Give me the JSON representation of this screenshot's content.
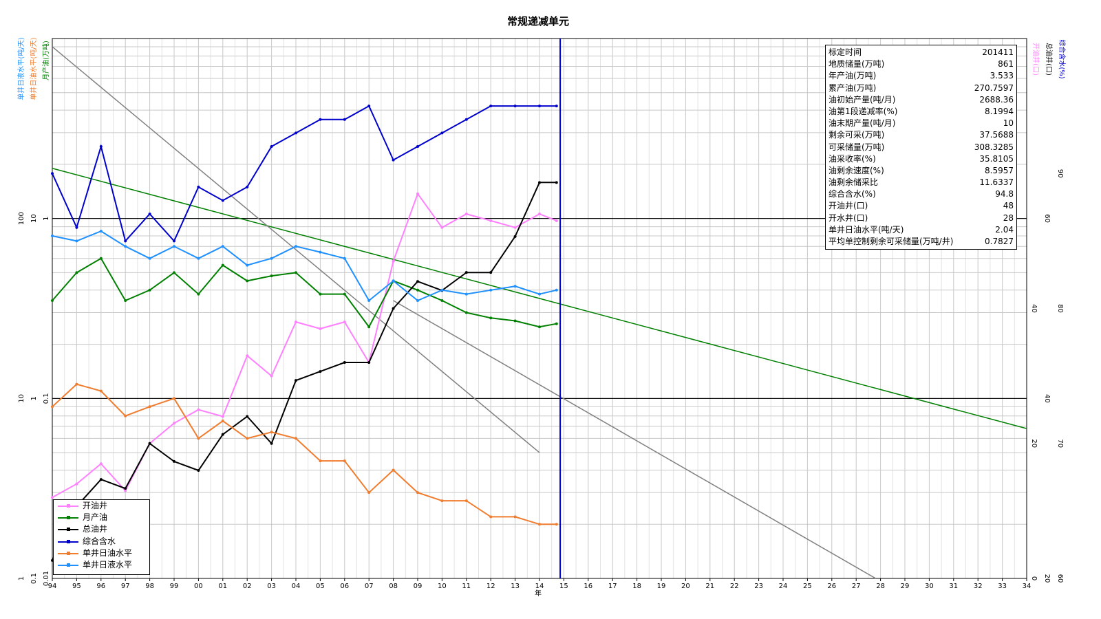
{
  "chart_data": {
    "type": "line",
    "title": "常规递减单元",
    "xlabel": "年",
    "x_ticks": [
      "94",
      "95",
      "96",
      "97",
      "98",
      "99",
      "00",
      "01",
      "02",
      "03",
      "04",
      "05",
      "06",
      "07",
      "08",
      "09",
      "10",
      "11",
      "12",
      "13",
      "14",
      "15",
      "16",
      "17",
      "18",
      "19",
      "20",
      "21",
      "22",
      "23",
      "24",
      "25",
      "26",
      "27",
      "28",
      "29",
      "30",
      "31",
      "32",
      "33",
      "34"
    ],
    "x_range": [
      1994,
      2034
    ],
    "vertical_marker_x": 2014.85,
    "grid": true,
    "legend_position": "bottom-left",
    "axes": {
      "liquid": {
        "label": "单井日液水平(吨/天)",
        "ticks": [
          "1",
          "10",
          "100"
        ],
        "scale": "log",
        "range": [
          1,
          1000
        ],
        "color": "#1e90ff"
      },
      "oil_level": {
        "label": "单井日油水平(吨/天)",
        "ticks": [
          "0.1",
          "1",
          "10"
        ],
        "scale": "log",
        "range": [
          0.1,
          100
        ],
        "color": "#f07c2e"
      },
      "monthly_oil": {
        "label": "月产油(万吨)",
        "ticks": [
          "0.01",
          "0.1",
          "1"
        ],
        "scale": "log",
        "range": [
          0.01,
          10
        ],
        "color": "#008000"
      },
      "open_wells": {
        "label": "开油井(口)",
        "ticks": [
          "0",
          "20",
          "40"
        ],
        "range": [
          0,
          80
        ],
        "color": "#ff80ff"
      },
      "total_wells": {
        "label": "总油井(口)",
        "ticks": [
          "20",
          "40",
          "60"
        ],
        "range": [
          20,
          80
        ],
        "color": "#000000"
      },
      "water_cut": {
        "label": "综合含水(%)",
        "ticks": [
          "60",
          "70",
          "80",
          "90"
        ],
        "range": [
          60,
          100
        ],
        "color": "#0000cc"
      }
    },
    "series": [
      {
        "name": "开油井",
        "color": "#ff80ff",
        "axis": "open_wells",
        "x": [
          1994,
          1995,
          1996,
          1997,
          1998,
          1999,
          2000,
          2001,
          2002,
          2003,
          2004,
          2005,
          2006,
          2007,
          2008,
          2009,
          2010,
          2011,
          2012,
          2013,
          2014,
          2014.7
        ],
        "y": [
          12,
          14,
          17,
          13,
          20,
          23,
          25,
          24,
          33,
          30,
          38,
          37,
          38,
          32,
          47,
          57,
          52,
          54,
          53,
          52,
          54,
          53
        ]
      },
      {
        "name": "月产油",
        "color": "#008000",
        "axis": "monthly_oil",
        "x": [
          1994,
          1995,
          1996,
          1997,
          1998,
          1999,
          2000,
          2001,
          2002,
          2003,
          2004,
          2005,
          2006,
          2007,
          2008,
          2009,
          2010,
          2011,
          2012,
          2013,
          2014,
          2014.7
        ],
        "y": [
          0.35,
          0.5,
          0.6,
          0.35,
          0.4,
          0.5,
          0.38,
          0.55,
          0.45,
          0.48,
          0.5,
          0.38,
          0.38,
          0.25,
          0.45,
          0.4,
          0.35,
          0.3,
          0.28,
          0.27,
          0.25,
          0.26
        ]
      },
      {
        "name": "总油井",
        "color": "#000000",
        "axis": "total_wells",
        "x": [
          1994,
          1995,
          1996,
          1997,
          1998,
          1999,
          2000,
          2001,
          2002,
          2003,
          2004,
          2005,
          2006,
          2007,
          2008,
          2009,
          2010,
          2011,
          2012,
          2013,
          2014,
          2014.7
        ],
        "y": [
          22,
          28,
          31,
          30,
          35,
          33,
          32,
          36,
          38,
          35,
          42,
          43,
          44,
          44,
          50,
          53,
          52,
          54,
          54,
          58,
          64,
          64
        ]
      },
      {
        "name": "综合含水",
        "color": "#0000cc",
        "axis": "water_cut",
        "x": [
          1994,
          1995,
          1996,
          1997,
          1998,
          1999,
          2000,
          2001,
          2002,
          2003,
          2004,
          2005,
          2006,
          2007,
          2008,
          2009,
          2010,
          2011,
          2012,
          2013,
          2014,
          2014.7
        ],
        "y": [
          90,
          86,
          92,
          85,
          87,
          85,
          89,
          88,
          89,
          92,
          93,
          94,
          94,
          95,
          91,
          92,
          93,
          94,
          95,
          95,
          95,
          95
        ]
      },
      {
        "name": "单井日油水平",
        "color": "#f07c2e",
        "axis": "oil_level",
        "x": [
          1994,
          1995,
          1996,
          1997,
          1998,
          1999,
          2000,
          2001,
          2002,
          2003,
          2004,
          2005,
          2006,
          2007,
          2008,
          2009,
          2010,
          2011,
          2012,
          2013,
          2014,
          2014.7
        ],
        "y": [
          0.9,
          1.2,
          1.1,
          0.8,
          0.9,
          1.0,
          0.6,
          0.75,
          0.6,
          0.65,
          0.6,
          0.45,
          0.45,
          0.3,
          0.4,
          0.3,
          0.27,
          0.27,
          0.22,
          0.22,
          0.2,
          0.2
        ]
      },
      {
        "name": "单井日液水平",
        "color": "#1e90ff",
        "axis": "liquid",
        "x": [
          1994,
          1995,
          1996,
          1997,
          1998,
          1999,
          2000,
          2001,
          2002,
          2003,
          2004,
          2005,
          2006,
          2007,
          2008,
          2009,
          2010,
          2011,
          2012,
          2013,
          2014,
          2014.7
        ],
        "y": [
          80,
          75,
          85,
          70,
          60,
          70,
          60,
          70,
          55,
          60,
          70,
          65,
          60,
          35,
          45,
          35,
          40,
          38,
          40,
          42,
          38,
          40
        ]
      }
    ],
    "decline_trend_lines": [
      {
        "color": "#008000",
        "x": [
          1994,
          2034
        ],
        "y": [
          1.9,
          0.068
        ]
      },
      {
        "color": "#808080",
        "x": [
          1994,
          2014
        ],
        "y": [
          9,
          0.05
        ]
      },
      {
        "color": "#808080",
        "x": [
          2008,
          2027.8
        ],
        "y": [
          0.35,
          0.01
        ]
      }
    ]
  },
  "info": [
    {
      "label": "标定时间",
      "value": "201411"
    },
    {
      "label": "地质储量(万吨)",
      "value": "861"
    },
    {
      "label": "年产油(万吨)",
      "value": "3.533"
    },
    {
      "label": "累产油(万吨)",
      "value": "270.7597"
    },
    {
      "label": "油初始产量(吨/月)",
      "value": "2688.36"
    },
    {
      "label": "油第1段递减率(%)",
      "value": "8.1994"
    },
    {
      "label": "油末期产量(吨/月)",
      "value": "10"
    },
    {
      "label": "剩余可采(万吨)",
      "value": "37.5688"
    },
    {
      "label": "可采储量(万吨)",
      "value": "308.3285"
    },
    {
      "label": "油采收率(%)",
      "value": "35.8105"
    },
    {
      "label": "油剩余速度(%)",
      "value": "8.5957"
    },
    {
      "label": "油剩余储采比",
      "value": "11.6337"
    },
    {
      "label": "综合含水(%)",
      "value": "94.8"
    },
    {
      "label": "开油井(口)",
      "value": "48"
    },
    {
      "label": "开水井(口)",
      "value": "28"
    },
    {
      "label": "单井日油水平(吨/天)",
      "value": "2.04"
    },
    {
      "label": "平均单控制剩余可采储量(万吨/井)",
      "value": "0.7827"
    }
  ]
}
